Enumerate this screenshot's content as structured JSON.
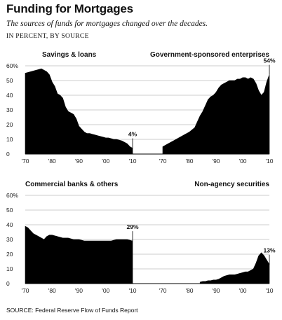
{
  "header": {
    "title": "Funding for Mortgages",
    "subtitle": "The sources of funds for mortgages changed over the decades.",
    "units": "IN PERCENT, BY SOURCE"
  },
  "footer": {
    "source": "SOURCE: Federal Reserve Flow of Funds Report"
  },
  "colors": {
    "area": "#000000",
    "grid": "#9a9a9a",
    "text": "#111111",
    "background": "#ffffff"
  },
  "chart_data": [
    {
      "type": "area",
      "title": "Savings & loans",
      "x_ticks": [
        "'70",
        "'80",
        "'90",
        "'00",
        "'10"
      ],
      "y_ticks": [
        "60%",
        "50",
        "40",
        "30",
        "20",
        "10",
        "0"
      ],
      "xlim": [
        1970,
        2010
      ],
      "ylim": [
        0,
        60
      ],
      "annotation": {
        "label": "4%",
        "x": 2010,
        "y": 4
      },
      "x": [
        1970,
        1972,
        1974,
        1976,
        1977,
        1978,
        1979,
        1980,
        1981,
        1982,
        1983,
        1984,
        1985,
        1986,
        1987,
        1988,
        1989,
        1990,
        1991,
        1992,
        1993,
        1994,
        1995,
        1996,
        1997,
        1998,
        1999,
        2000,
        2001,
        2002,
        2003,
        2004,
        2005,
        2006,
        2007,
        2008,
        2009,
        2010
      ],
      "y": [
        55,
        56,
        57,
        58,
        57,
        56,
        54,
        49,
        46,
        41,
        40,
        38,
        32,
        29,
        28,
        27,
        24,
        19,
        17,
        15,
        14,
        14,
        13.5,
        13,
        12.5,
        12,
        11.5,
        11,
        11,
        10.5,
        10,
        10,
        9.5,
        9,
        8,
        7,
        5,
        4
      ]
    },
    {
      "type": "area",
      "title": "Government-sponsored enterprises",
      "x_ticks": [
        "'70",
        "'80",
        "'90",
        "'00",
        "'10"
      ],
      "xlim": [
        1970,
        2010
      ],
      "ylim": [
        0,
        60
      ],
      "annotation": {
        "label": "54%",
        "x": 2010,
        "y": 54
      },
      "x": [
        1970,
        1972,
        1974,
        1976,
        1978,
        1980,
        1982,
        1983,
        1984,
        1985,
        1986,
        1987,
        1988,
        1989,
        1990,
        1991,
        1992,
        1993,
        1994,
        1995,
        1996,
        1997,
        1998,
        1999,
        2000,
        2001,
        2002,
        2003,
        2004,
        2005,
        2006,
        2007,
        2008,
        2009,
        2010
      ],
      "y": [
        5,
        7,
        9,
        11,
        13,
        15,
        18,
        22,
        26,
        29,
        33,
        37,
        39,
        40,
        42,
        45,
        47,
        48,
        49,
        50,
        50,
        50,
        51,
        51,
        52,
        52,
        51,
        52,
        51,
        48,
        43,
        40,
        42,
        49,
        54
      ]
    },
    {
      "type": "area",
      "title": "Commercial banks & others",
      "x_ticks": [
        "'70",
        "'80",
        "'90",
        "'00",
        "'10"
      ],
      "y_ticks": [
        "60%",
        "50",
        "40",
        "30",
        "20",
        "10",
        "0"
      ],
      "xlim": [
        1970,
        2010
      ],
      "ylim": [
        0,
        60
      ],
      "annotation": {
        "label": "29%",
        "x": 2010,
        "y": 29
      },
      "x": [
        1970,
        1971,
        1972,
        1973,
        1974,
        1975,
        1976,
        1977,
        1978,
        1979,
        1980,
        1982,
        1984,
        1986,
        1988,
        1990,
        1992,
        1994,
        1996,
        1998,
        2000,
        2002,
        2004,
        2006,
        2008,
        2010
      ],
      "y": [
        39,
        38,
        36,
        34,
        33,
        32,
        31,
        30,
        32,
        33,
        33,
        32,
        31,
        31,
        30,
        30,
        29,
        29,
        29,
        29,
        29,
        29,
        30,
        30,
        30,
        29
      ]
    },
    {
      "type": "area",
      "title": "Non-agency securities",
      "x_ticks": [
        "'70",
        "'80",
        "'90",
        "'00",
        "'10"
      ],
      "xlim": [
        1970,
        2010
      ],
      "ylim": [
        0,
        60
      ],
      "annotation": {
        "label": "13%",
        "x": 2010,
        "y": 13
      },
      "x": [
        1984,
        1985,
        1986,
        1987,
        1988,
        1989,
        1990,
        1991,
        1992,
        1993,
        1994,
        1995,
        1996,
        1997,
        1998,
        1999,
        2000,
        2001,
        2002,
        2003,
        2004,
        2005,
        2006,
        2007,
        2008,
        2009,
        2010
      ],
      "y": [
        1,
        1.5,
        1.5,
        2,
        2,
        2.5,
        2.5,
        3,
        4,
        5,
        5.5,
        6,
        6,
        6,
        6.5,
        7,
        7.5,
        8,
        8,
        9,
        10,
        14,
        19,
        21,
        19,
        16,
        13
      ]
    }
  ]
}
